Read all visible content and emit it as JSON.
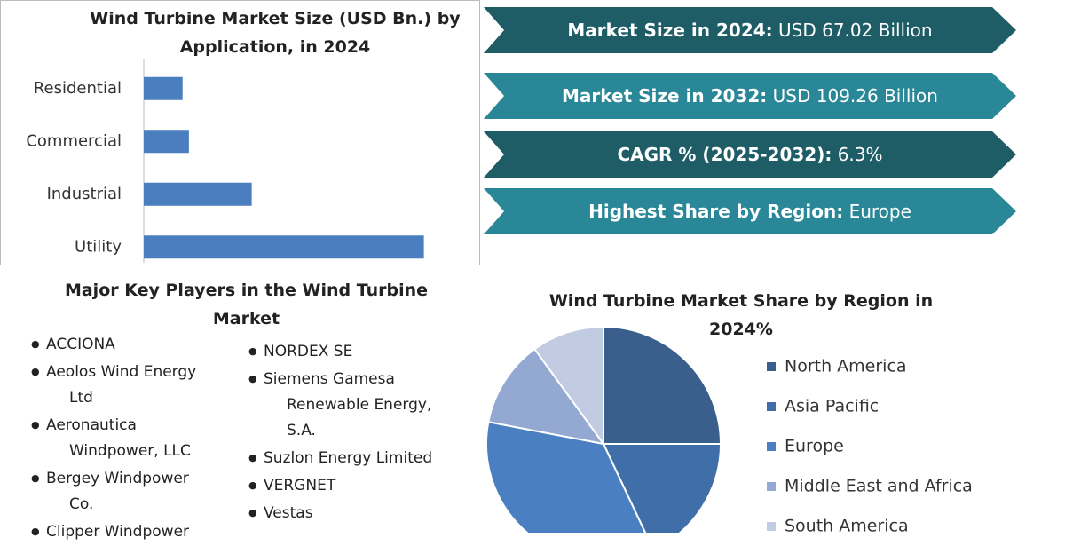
{
  "chart_data": [
    {
      "type": "hbar",
      "title": "Wind Turbine Market Size (USD Bn.) by Application, in 2024",
      "categories": [
        "Residential",
        "Commercial",
        "Industrial",
        "Utility"
      ],
      "values": [
        5.5,
        6.4,
        15.3,
        39.7
      ],
      "color": "#4a7ebf",
      "xlim": [
        0,
        40
      ]
    },
    {
      "type": "pie",
      "title": "Wind Turbine Market Share by Region in 2024%",
      "categories": [
        "North America",
        "Asia Pacific",
        "Europe",
        "Middle East and Africa",
        "South America"
      ],
      "values": [
        25,
        18,
        35,
        12,
        10
      ],
      "colors": [
        "#3a5f8c",
        "#3f6ea8",
        "#4a80c2",
        "#93a9d2",
        "#c1cce3"
      ]
    }
  ],
  "stats": [
    {
      "label": "Market Size in 2024:",
      "value": "USD 67.02 Billion"
    },
    {
      "label": "Market Size in 2032:",
      "value": "USD 109.26 Billion"
    },
    {
      "label": "CAGR % (2025-2032):",
      "value": "6.3%"
    },
    {
      "label": "Highest Share by Region:",
      "value": "Europe"
    }
  ],
  "key_players": {
    "title": "Major Key Players in the Wind Turbine Market",
    "columns": [
      [
        "ACCIONA",
        "Aeolos Wind Energy Ltd",
        "Aeronautica Windpower, LLC",
        "Bergey Windpower Co.",
        "Clipper Windpower"
      ],
      [
        "NORDEX SE",
        "Siemens Gamesa Renewable Energy, S.A.",
        "Suzlon Energy Limited",
        "VERGNET",
        "Vestas"
      ]
    ]
  }
}
